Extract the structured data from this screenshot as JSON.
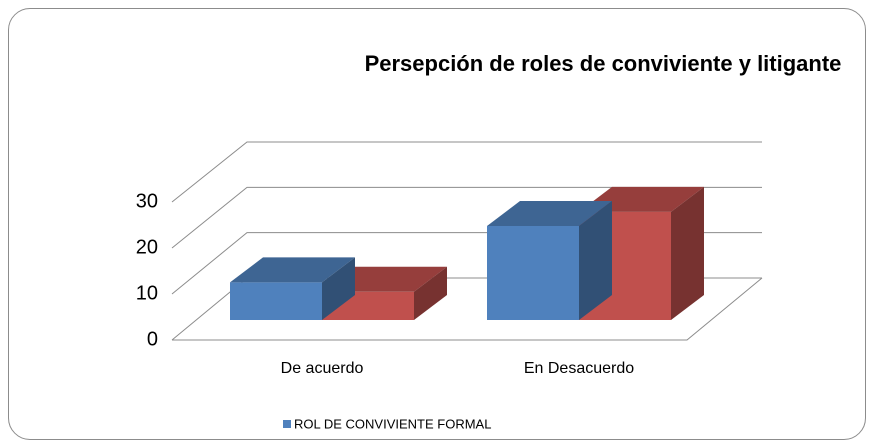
{
  "chart_data": {
    "type": "bar3d",
    "title": "Persepción de roles de conviviente y litigante",
    "categories": [
      "De acuerdo",
      "En Desacuerdo"
    ],
    "series": [
      {
        "name": "ROL DE CONVIVIENTE FORMAL",
        "color": "#4f81bd",
        "values": [
          8,
          20
        ]
      },
      {
        "color": "#c0504d",
        "values": [
          6,
          23
        ]
      }
    ],
    "ylim": [
      0,
      30
    ],
    "yticks": [
      0,
      10,
      20,
      30
    ],
    "grid": true,
    "legend": "bottom"
  }
}
